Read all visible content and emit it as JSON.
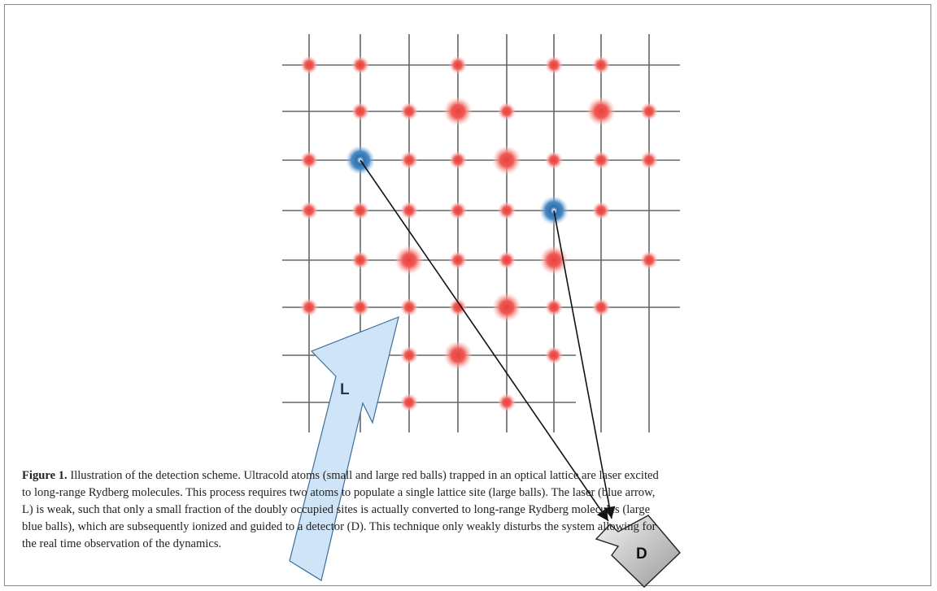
{
  "figure": {
    "laser_label": "L",
    "detector_label": "D"
  },
  "caption": {
    "label": "Figure 1.",
    "lines": [
      "Illustration of the detection scheme. Ultracold atoms (small and large red balls) trapped in an optical lattice are laser excited",
      "to long-range Rydberg molecules. This process requires two atoms to populate a single lattice site (large balls). The laser (blue arrow,",
      "L) is weak, such that only a small fraction of the doubly occupied sites is actually converted to long-range Rydberg molecules (large",
      "blue balls), which are subsequently ionized and guided to a detector (D). This technique only weakly disturbs the system allowing for",
      "the real time observation of the dynamics."
    ]
  }
}
